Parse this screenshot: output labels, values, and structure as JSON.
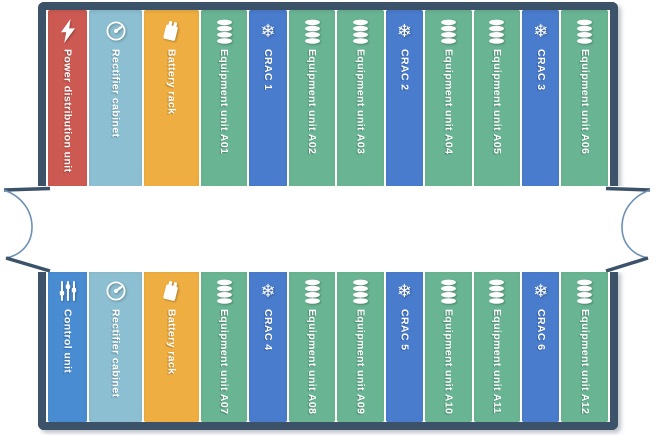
{
  "diagram_name": "smart-module-rack-layout",
  "colors": {
    "frame": "#3c5269",
    "power": "#cd5a52",
    "rectifier": "#8cbfd1",
    "battery": "#eeae41",
    "equipment": "#69b593",
    "crac": "#4a7ccd",
    "control": "#4a8cd2",
    "label_text": "#ffffff",
    "break_curve": "#6e90b6"
  },
  "rows": [
    {
      "name": "top-row",
      "units": [
        {
          "type": "power",
          "icon": "lightning-icon",
          "label": "Power distribution unit"
        },
        {
          "type": "rectifier",
          "icon": "gauge-icon",
          "label": "Rectifier cabinet"
        },
        {
          "type": "battery",
          "icon": "battery-icon",
          "label": "Battery rack"
        },
        {
          "type": "equipment",
          "icon": "database-icon",
          "label": "Equipment unit A01"
        },
        {
          "type": "crac",
          "icon": "snowflake-icon",
          "label": "CRAC 1"
        },
        {
          "type": "equipment",
          "icon": "database-icon",
          "label": "Equipment unit A02"
        },
        {
          "type": "equipment",
          "icon": "database-icon",
          "label": "Equipment unit A03"
        },
        {
          "type": "crac",
          "icon": "snowflake-icon",
          "label": "CRAC 2"
        },
        {
          "type": "equipment",
          "icon": "database-icon",
          "label": "Equipment unit A04"
        },
        {
          "type": "equipment",
          "icon": "database-icon",
          "label": "Equipment unit A05"
        },
        {
          "type": "crac",
          "icon": "snowflake-icon",
          "label": "CRAC 3"
        },
        {
          "type": "equipment",
          "icon": "database-icon",
          "label": "Equipment unit A06"
        }
      ]
    },
    {
      "name": "bottom-row",
      "units": [
        {
          "type": "control",
          "icon": "sliders-icon",
          "label": "Control unit"
        },
        {
          "type": "rectifier",
          "icon": "gauge-icon",
          "label": "Rectifier cabinet"
        },
        {
          "type": "battery",
          "icon": "battery-icon",
          "label": "Battery rack"
        },
        {
          "type": "equipment",
          "icon": "database-icon",
          "label": "Equipment unit A07"
        },
        {
          "type": "crac",
          "icon": "snowflake-icon",
          "label": "CRAC 4"
        },
        {
          "type": "equipment",
          "icon": "database-icon",
          "label": "Equipment unit A08"
        },
        {
          "type": "equipment",
          "icon": "database-icon",
          "label": "Equipment unit A09"
        },
        {
          "type": "crac",
          "icon": "snowflake-icon",
          "label": "CRAC 5"
        },
        {
          "type": "equipment",
          "icon": "database-icon",
          "label": "Equipment unit A10"
        },
        {
          "type": "equipment",
          "icon": "database-icon",
          "label": "Equipment unit A11"
        },
        {
          "type": "crac",
          "icon": "snowflake-icon",
          "label": "CRAC 6"
        },
        {
          "type": "equipment",
          "icon": "database-icon",
          "label": "Equipment unit A12"
        }
      ]
    }
  ]
}
